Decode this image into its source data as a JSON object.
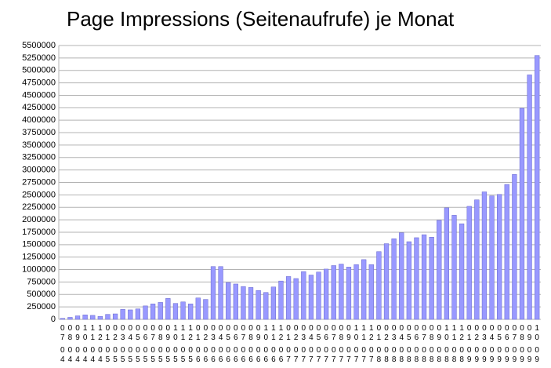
{
  "chart_data": {
    "type": "bar",
    "title": "Page Impressions (Seitenaufrufe) je Monat",
    "categories": [
      [
        "07",
        "04"
      ],
      [
        "08",
        "04"
      ],
      [
        "09",
        "04"
      ],
      [
        "10",
        "04"
      ],
      [
        "11",
        "04"
      ],
      [
        "12",
        "04"
      ],
      [
        "01",
        "05"
      ],
      [
        "02",
        "05"
      ],
      [
        "03",
        "05"
      ],
      [
        "04",
        "05"
      ],
      [
        "05",
        "05"
      ],
      [
        "06",
        "05"
      ],
      [
        "07",
        "05"
      ],
      [
        "08",
        "05"
      ],
      [
        "09",
        "05"
      ],
      [
        "10",
        "05"
      ],
      [
        "11",
        "05"
      ],
      [
        "12",
        "05"
      ],
      [
        "01",
        "06"
      ],
      [
        "02",
        "06"
      ],
      [
        "03",
        "06"
      ],
      [
        "04",
        "06"
      ],
      [
        "05",
        "06"
      ],
      [
        "06",
        "06"
      ],
      [
        "07",
        "06"
      ],
      [
        "08",
        "06"
      ],
      [
        "09",
        "06"
      ],
      [
        "10",
        "06"
      ],
      [
        "11",
        "06"
      ],
      [
        "12",
        "06"
      ],
      [
        "01",
        "07"
      ],
      [
        "02",
        "07"
      ],
      [
        "03",
        "07"
      ],
      [
        "04",
        "07"
      ],
      [
        "05",
        "07"
      ],
      [
        "06",
        "07"
      ],
      [
        "07",
        "07"
      ],
      [
        "08",
        "07"
      ],
      [
        "09",
        "07"
      ],
      [
        "10",
        "07"
      ],
      [
        "11",
        "07"
      ],
      [
        "12",
        "07"
      ],
      [
        "01",
        "08"
      ],
      [
        "02",
        "08"
      ],
      [
        "03",
        "08"
      ],
      [
        "04",
        "08"
      ],
      [
        "05",
        "08"
      ],
      [
        "06",
        "08"
      ],
      [
        "07",
        "08"
      ],
      [
        "08",
        "08"
      ],
      [
        "09",
        "08"
      ],
      [
        "10",
        "08"
      ],
      [
        "11",
        "08"
      ],
      [
        "12",
        "08"
      ],
      [
        "01",
        "09"
      ],
      [
        "02",
        "09"
      ],
      [
        "03",
        "09"
      ],
      [
        "04",
        "09"
      ],
      [
        "05",
        "09"
      ],
      [
        "06",
        "09"
      ],
      [
        "07",
        "09"
      ],
      [
        "08",
        "09"
      ],
      [
        "09",
        "09"
      ],
      [
        "10",
        "09"
      ]
    ],
    "values": [
      20000,
      40000,
      70000,
      90000,
      80000,
      60000,
      100000,
      110000,
      200000,
      190000,
      210000,
      270000,
      310000,
      340000,
      420000,
      320000,
      350000,
      310000,
      430000,
      400000,
      1060000,
      1060000,
      740000,
      710000,
      660000,
      640000,
      580000,
      540000,
      650000,
      770000,
      860000,
      820000,
      960000,
      890000,
      950000,
      1010000,
      1080000,
      1110000,
      1050000,
      1100000,
      1200000,
      1100000,
      1360000,
      1520000,
      1620000,
      1740000,
      1560000,
      1640000,
      1700000,
      1650000,
      1990000,
      2240000,
      2090000,
      1920000,
      2270000,
      2400000,
      2560000,
      2480000,
      2510000,
      2710000,
      2910000,
      4240000,
      4910000,
      5300000
    ],
    "color": "#9999ff",
    "ylim": [
      0,
      5500000
    ],
    "yticks": [
      0,
      250000,
      500000,
      750000,
      1000000,
      1250000,
      1500000,
      1750000,
      2000000,
      2250000,
      2500000,
      2750000,
      3000000,
      3250000,
      3500000,
      3750000,
      4000000,
      4250000,
      4500000,
      4750000,
      5000000,
      5250000,
      5500000
    ],
    "grid": true
  }
}
